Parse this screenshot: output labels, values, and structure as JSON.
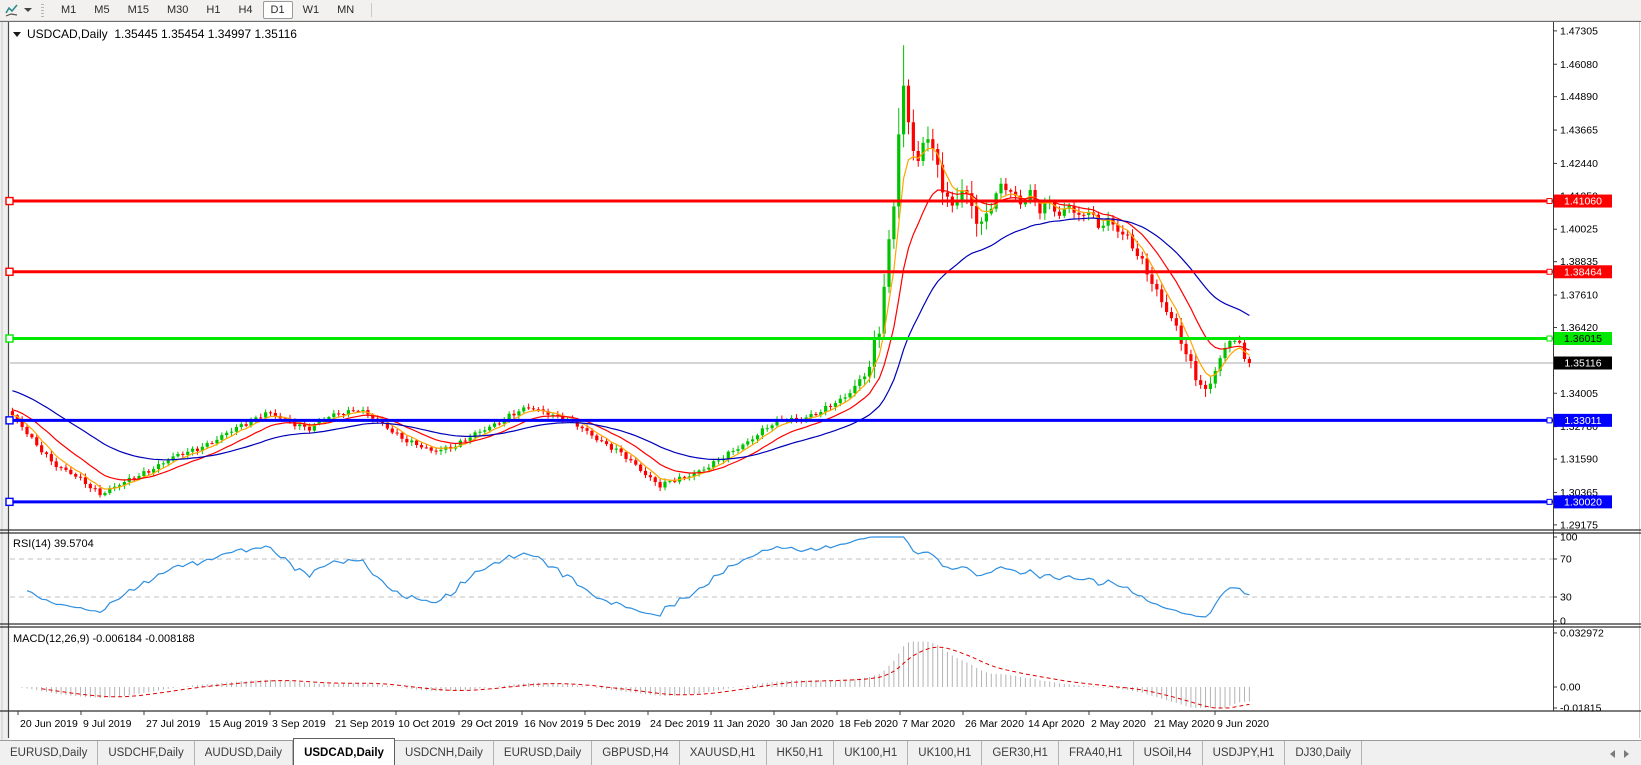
{
  "toolbar": {
    "timeframes": [
      "M1",
      "M5",
      "M15",
      "M30",
      "H1",
      "H4",
      "D1",
      "W1",
      "MN"
    ],
    "active_timeframe": "D1"
  },
  "header": {
    "title": "USDCAD,Daily  1.35445 1.35454 1.34997 1.35116"
  },
  "indicators": {
    "rsi": {
      "label": "RSI(14) 39.5704"
    },
    "macd": {
      "label": "MACD(12,26,9) -0.006184 -0.008188"
    }
  },
  "tabs": {
    "items": [
      "EURUSD,Daily",
      "USDCHF,Daily",
      "AUDUSD,Daily",
      "USDCAD,Daily",
      "USDCNH,Daily",
      "EURUSD,Daily",
      "GBPUSD,H4",
      "XAUUSD,H1",
      "HK50,H1",
      "UK100,H1",
      "UK100,H1",
      "GER30,H1",
      "FRA40,H1",
      "USOil,H4",
      "USDJPY,H1",
      "DJ30,Daily"
    ],
    "active_index": 3
  },
  "chart_data": {
    "type": "candlestick",
    "symbol": "USDCAD",
    "timeframe": "Daily",
    "current_bar": {
      "open": 1.35445,
      "high": 1.35454,
      "low": 1.34997,
      "close": 1.35116
    },
    "num_candles": 255,
    "close_anchors": [
      [
        0,
        1.332
      ],
      [
        4,
        1.3229
      ],
      [
        9,
        1.3137
      ],
      [
        14,
        1.3082
      ],
      [
        18,
        1.3034
      ],
      [
        23,
        1.3071
      ],
      [
        28,
        1.3119
      ],
      [
        33,
        1.3163
      ],
      [
        38,
        1.32
      ],
      [
        42,
        1.3229
      ],
      [
        47,
        1.3284
      ],
      [
        52,
        1.3328
      ],
      [
        56,
        1.3302
      ],
      [
        61,
        1.3273
      ],
      [
        66,
        1.332
      ],
      [
        71,
        1.3345
      ],
      [
        76,
        1.3284
      ],
      [
        81,
        1.3229
      ],
      [
        86,
        1.3185
      ],
      [
        91,
        1.3211
      ],
      [
        97,
        1.3266
      ],
      [
        102,
        1.332
      ],
      [
        106,
        1.3345
      ],
      [
        110,
        1.3331
      ],
      [
        114,
        1.3302
      ],
      [
        119,
        1.3247
      ],
      [
        124,
        1.3192
      ],
      [
        129,
        1.3119
      ],
      [
        133,
        1.3064
      ],
      [
        138,
        1.309
      ],
      [
        142,
        1.3126
      ],
      [
        146,
        1.3163
      ],
      [
        150,
        1.3211
      ],
      [
        154,
        1.3266
      ],
      [
        158,
        1.3302
      ],
      [
        162,
        1.331
      ],
      [
        166,
        1.3331
      ],
      [
        170,
        1.3375
      ],
      [
        173,
        1.343
      ],
      [
        176,
        1.3493
      ],
      [
        178,
        1.3632
      ],
      [
        179,
        1.3779
      ],
      [
        180,
        1.3944
      ],
      [
        181,
        1.4109
      ],
      [
        182,
        1.4366
      ],
      [
        183,
        1.4531
      ],
      [
        184,
        1.4403
      ],
      [
        185,
        1.4311
      ],
      [
        186,
        1.4238
      ],
      [
        188,
        1.4348
      ],
      [
        189,
        1.4274
      ],
      [
        191,
        1.4164
      ],
      [
        193,
        1.4091
      ],
      [
        195,
        1.4164
      ],
      [
        197,
        1.4072
      ],
      [
        199,
        1.3999
      ],
      [
        201,
        1.4091
      ],
      [
        203,
        1.4172
      ],
      [
        205,
        1.4146
      ],
      [
        207,
        1.4091
      ],
      [
        209,
        1.4128
      ],
      [
        211,
        1.4072
      ],
      [
        213,
        1.4109
      ],
      [
        215,
        1.4054
      ],
      [
        217,
        1.4091
      ],
      [
        219,
        1.4036
      ],
      [
        221,
        1.4072
      ],
      [
        223,
        1.4017
      ],
      [
        225,
        1.4042
      ],
      [
        227,
        1.3998
      ],
      [
        229,
        1.3962
      ],
      [
        231,
        1.3907
      ],
      [
        233,
        1.3852
      ],
      [
        235,
        1.3778
      ],
      [
        237,
        1.3705
      ],
      [
        239,
        1.3632
      ],
      [
        241,
        1.354
      ],
      [
        243,
        1.3467
      ],
      [
        245,
        1.3412
      ],
      [
        247,
        1.3486
      ],
      [
        249,
        1.3559
      ],
      [
        250,
        1.3595
      ],
      [
        252,
        1.3577
      ],
      [
        253,
        1.354
      ],
      [
        254,
        1.35116
      ]
    ],
    "extreme_high": {
      "index": 183,
      "price": 1.4678
    },
    "price_ticks": [
      "1.47305",
      "1.46080",
      "1.44890",
      "1.43665",
      "1.42440",
      "1.41250",
      "1.40025",
      "1.38835",
      "1.37610",
      "1.36420",
      "1.35195",
      "1.34005",
      "1.32780",
      "1.31590",
      "1.30365",
      "1.29175"
    ],
    "levels": [
      {
        "name": "resistance-1",
        "price": 1.4106,
        "label": "1.41060",
        "color": "#FF0000",
        "text_color": "#FFFFFF"
      },
      {
        "name": "resistance-2",
        "price": 1.38464,
        "label": "1.38464",
        "color": "#FF0000",
        "text_color": "#FFFFFF"
      },
      {
        "name": "pivot-green",
        "price": 1.36015,
        "label": "1.36015",
        "color": "#00E800",
        "text_color": "#000000"
      },
      {
        "name": "support-1",
        "price": 1.33011,
        "label": "1.33011",
        "color": "#0000FF",
        "text_color": "#FFFFFF"
      },
      {
        "name": "support-2",
        "price": 1.3002,
        "label": "1.30020",
        "color": "#0000FF",
        "text_color": "#FFFFFF"
      }
    ],
    "current_price": {
      "value": 1.35116,
      "label": "1.35116",
      "line_color": "#ABABAB",
      "box_color": "#000000",
      "text_color": "#FFFFFF"
    },
    "moving_averages": [
      {
        "name": "fast",
        "period": 5,
        "color": "#FFA500"
      },
      {
        "name": "medium",
        "period": 13,
        "color": "#FF0000"
      },
      {
        "name": "slow",
        "period": 34,
        "color": "#0000B8"
      }
    ],
    "candle_colors": {
      "up": "#00C300",
      "down": "#FE0000"
    },
    "x_axis": {
      "dates": [
        "20 Jun 2019",
        "9 Jul 2019",
        "27 Jul 2019",
        "15 Aug 2019",
        "3 Sep 2019",
        "21 Sep 2019",
        "10 Oct 2019",
        "29 Oct 2019",
        "16 Nov 2019",
        "5 Dec 2019",
        "24 Dec 2019",
        "11 Jan 2020",
        "30 Jan 2020",
        "18 Feb 2020",
        "7 Mar 2020",
        "26 Mar 2020",
        "14 Apr 2020",
        "2 May 2020",
        "21 May 2020",
        "9 Jun 2020"
      ]
    },
    "rsi": {
      "period": 14,
      "current": 39.5704,
      "axis_ticks": [
        "100",
        "70",
        "30",
        "0"
      ],
      "level_lines": [
        70,
        30
      ],
      "line_color": "#2E8FE0"
    },
    "macd": {
      "fast": 12,
      "slow": 26,
      "signal_period": 9,
      "main_current": -0.006184,
      "signal_current": -0.008188,
      "axis_ticks": [
        {
          "label": "0.032972",
          "value": 0.032972
        },
        {
          "label": "0.00",
          "value": 0
        },
        {
          "label": "-0.01815",
          "value": -0.01815
        }
      ],
      "histogram_color": "#B3B3B3",
      "signal_color": "#E00000"
    }
  }
}
